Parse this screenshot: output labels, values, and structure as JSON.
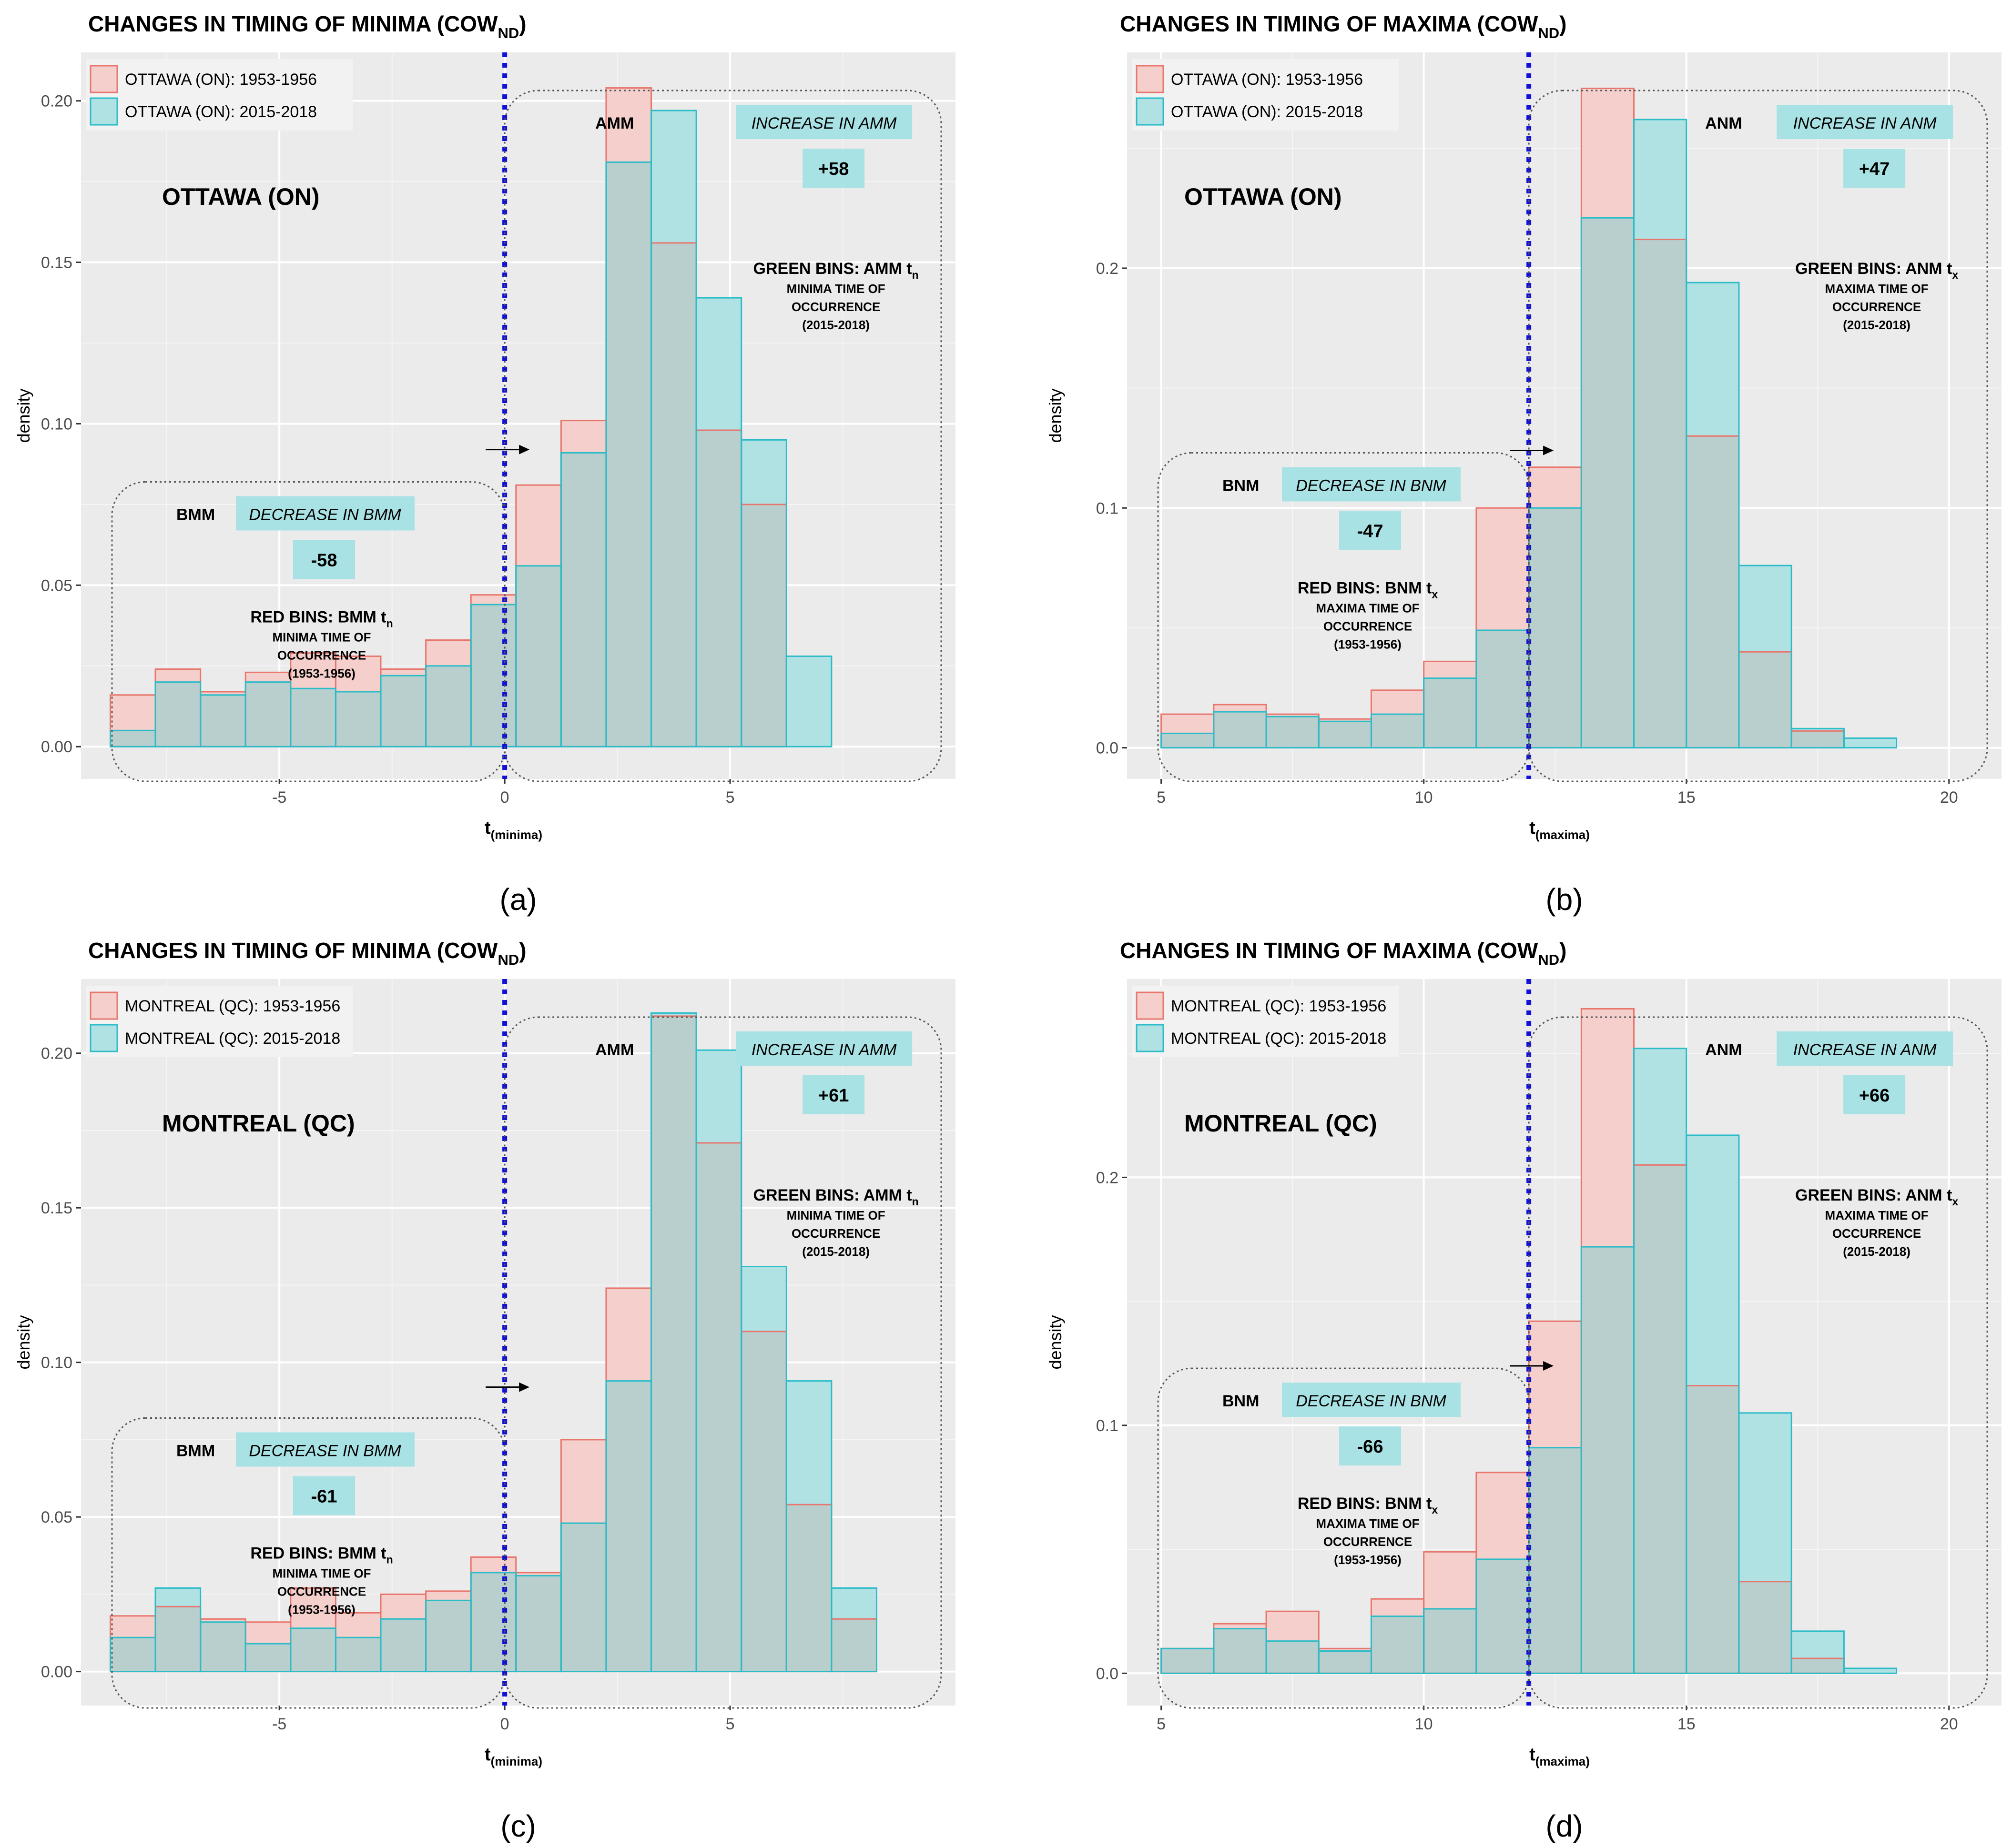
{
  "figure": {
    "panel_letters": [
      "(a)",
      "(b)",
      "(c)",
      "(d)"
    ]
  },
  "colors": {
    "panel_bg": "#ebebeb",
    "grid": "#ffffff",
    "red_fill": "#f4cfcc",
    "red_stroke": "#e8766d",
    "teal_fill": "#b0e2e4",
    "teal_stroke": "#2bbcc8",
    "overlap_fill": "#b9cfce",
    "vline": "#1010d8",
    "callout_bg": "#a9e2e4",
    "text": "#000000",
    "tick_text": "#4d4d4d"
  },
  "chart_data": [
    {
      "type": "bar",
      "panel": "(a)",
      "title": "CHANGES IN TIMING OF MINIMA (COW",
      "title_sub": "ND",
      "title_close": ")",
      "xlabel": "t",
      "xlabel_sub": "(minima)",
      "ylabel": "density",
      "xlim": [
        -9.4,
        10.0
      ],
      "ylim": [
        -0.01,
        0.215
      ],
      "xticks": [
        -5,
        0,
        5
      ],
      "xtick_labels": [
        "-5",
        "0",
        "5"
      ],
      "yticks": [
        0.0,
        0.05,
        0.1,
        0.15,
        0.2
      ],
      "ytick_labels": [
        "0.00",
        "0.05",
        "0.10",
        "0.15",
        "0.20"
      ],
      "bin_start": -8.75,
      "bin_width": 1.0,
      "series": [
        {
          "name": "OTTAWA (ON): 1953-1956",
          "color": "red",
          "values": [
            0.016,
            0.024,
            0.017,
            0.023,
            0.029,
            0.028,
            0.024,
            0.033,
            0.047,
            0.081,
            0.101,
            0.204,
            0.156,
            0.098,
            0.075,
            0.0
          ]
        },
        {
          "name": "OTTAWA (ON): 2015-2018",
          "color": "teal",
          "values": [
            0.005,
            0.02,
            0.016,
            0.02,
            0.018,
            0.017,
            0.022,
            0.025,
            0.044,
            0.056,
            0.091,
            0.181,
            0.197,
            0.139,
            0.095,
            0.028
          ]
        }
      ],
      "vline_x": 0,
      "station_label": "OTTAWA (ON)",
      "below_group": {
        "tag": "BMM",
        "callout": "DECREASE IN BMM",
        "change": "-58",
        "bins_title": "RED BINS: BMM t",
        "bins_sub": "n",
        "bins_desc": [
          "MINIMA TIME OF",
          "OCCURRENCE",
          "(1953-1956)"
        ]
      },
      "above_group": {
        "tag": "AMM",
        "callout": "INCREASE IN AMM",
        "change": "+58",
        "bins_title": "GREEN BINS: AMM t",
        "bins_sub": "n",
        "bins_desc": [
          "MINIMA TIME OF",
          "OCCURRENCE",
          "(2015-2018)"
        ]
      }
    },
    {
      "type": "bar",
      "panel": "(b)",
      "title": "CHANGES IN TIMING OF MAXIMA (COW",
      "title_sub": "ND",
      "title_close": ")",
      "xlabel": "t",
      "xlabel_sub": "(maxima)",
      "ylabel": "density",
      "xlim": [
        4.35,
        21.0
      ],
      "ylim": [
        -0.013,
        0.29
      ],
      "xticks": [
        5,
        10,
        15,
        20
      ],
      "xtick_labels": [
        "5",
        "10",
        "15",
        "20"
      ],
      "yticks": [
        0.0,
        0.1,
        0.2
      ],
      "ytick_labels": [
        "0.0",
        "0.1",
        "0.2"
      ],
      "bin_start": 5.0,
      "bin_width": 1.0,
      "series": [
        {
          "name": "OTTAWA (ON): 1953-1956",
          "color": "red",
          "values": [
            0.014,
            0.018,
            0.014,
            0.012,
            0.024,
            0.036,
            0.1,
            0.117,
            0.275,
            0.212,
            0.13,
            0.04,
            0.007,
            0.0,
            0.0
          ]
        },
        {
          "name": "OTTAWA (ON): 2015-2018",
          "color": "teal",
          "values": [
            0.006,
            0.015,
            0.013,
            0.011,
            0.014,
            0.029,
            0.049,
            0.1,
            0.221,
            0.262,
            0.194,
            0.076,
            0.008,
            0.004,
            0.0
          ]
        }
      ],
      "vline_x": 12,
      "station_label": "OTTAWA (ON)",
      "below_group": {
        "tag": "BNM",
        "callout": "DECREASE IN BNM",
        "change": "-47",
        "bins_title": "RED BINS: BNM t",
        "bins_sub": "x",
        "bins_desc": [
          "MAXIMA TIME OF",
          "OCCURRENCE",
          "(1953-1956)"
        ]
      },
      "above_group": {
        "tag": "ANM",
        "callout": "INCREASE IN ANM",
        "change": "+47",
        "bins_title": "GREEN BINS: ANM t",
        "bins_sub": "x",
        "bins_desc": [
          "MAXIMA TIME OF",
          "OCCURRENCE",
          "(2015-2018)"
        ]
      }
    },
    {
      "type": "bar",
      "panel": "(c)",
      "title": "CHANGES IN TIMING OF MINIMA (COW",
      "title_sub": "ND",
      "title_close": ")",
      "xlabel": "t",
      "xlabel_sub": "(minima)",
      "ylabel": "density",
      "xlim": [
        -9.4,
        10.0
      ],
      "ylim": [
        -0.011,
        0.224
      ],
      "xticks": [
        -5,
        0,
        5
      ],
      "xtick_labels": [
        "-5",
        "0",
        "5"
      ],
      "yticks": [
        0.0,
        0.05,
        0.1,
        0.15,
        0.2
      ],
      "ytick_labels": [
        "0.00",
        "0.05",
        "0.10",
        "0.15",
        "0.20"
      ],
      "bin_start": -8.75,
      "bin_width": 1.0,
      "series": [
        {
          "name": "MONTREAL (QC): 1953-1956",
          "color": "red",
          "values": [
            0.018,
            0.021,
            0.017,
            0.016,
            0.027,
            0.019,
            0.025,
            0.026,
            0.037,
            0.032,
            0.075,
            0.124,
            0.212,
            0.171,
            0.11,
            0.054,
            0.017
          ]
        },
        {
          "name": "MONTREAL (QC): 2015-2018",
          "color": "teal",
          "values": [
            0.011,
            0.027,
            0.016,
            0.009,
            0.014,
            0.011,
            0.017,
            0.023,
            0.032,
            0.031,
            0.048,
            0.094,
            0.213,
            0.201,
            0.131,
            0.094,
            0.027
          ]
        }
      ],
      "vline_x": 0,
      "station_label": "MONTREAL (QC)",
      "below_group": {
        "tag": "BMM",
        "callout": "DECREASE IN BMM",
        "change": "-61",
        "bins_title": "RED BINS: BMM t",
        "bins_sub": "n",
        "bins_desc": [
          "MINIMA TIME OF",
          "OCCURRENCE",
          "(1953-1956)"
        ]
      },
      "above_group": {
        "tag": "AMM",
        "callout": "INCREASE IN AMM",
        "change": "+61",
        "bins_title": "GREEN BINS: AMM t",
        "bins_sub": "n",
        "bins_desc": [
          "MINIMA TIME OF",
          "OCCURRENCE",
          "(2015-2018)"
        ]
      }
    },
    {
      "type": "bar",
      "panel": "(d)",
      "title": "CHANGES IN TIMING OF MAXIMA (COW",
      "title_sub": "ND",
      "title_close": ")",
      "xlabel": "t",
      "xlabel_sub": "(maxima)",
      "ylabel": "density",
      "xlim": [
        4.35,
        21.0
      ],
      "ylim": [
        -0.013,
        0.28
      ],
      "xticks": [
        5,
        10,
        15,
        20
      ],
      "xtick_labels": [
        "5",
        "10",
        "15",
        "20"
      ],
      "yticks": [
        0.0,
        0.1,
        0.2
      ],
      "ytick_labels": [
        "0.0",
        "0.1",
        "0.2"
      ],
      "bin_start": 5.0,
      "bin_width": 1.0,
      "series": [
        {
          "name": "MONTREAL (QC): 1953-1956",
          "color": "red",
          "values": [
            0.01,
            0.02,
            0.025,
            0.01,
            0.03,
            0.049,
            0.081,
            0.142,
            0.268,
            0.205,
            0.116,
            0.037,
            0.006,
            0.0,
            0.0
          ]
        },
        {
          "name": "MONTREAL (QC): 2015-2018",
          "color": "teal",
          "values": [
            0.01,
            0.018,
            0.013,
            0.009,
            0.023,
            0.026,
            0.046,
            0.091,
            0.172,
            0.252,
            0.217,
            0.105,
            0.017,
            0.002,
            0.0
          ]
        }
      ],
      "vline_x": 12,
      "station_label": "MONTREAL (QC)",
      "below_group": {
        "tag": "BNM",
        "callout": "DECREASE IN BNM",
        "change": "-66",
        "bins_title": "RED BINS: BNM t",
        "bins_sub": "x",
        "bins_desc": [
          "MAXIMA TIME OF",
          "OCCURRENCE",
          "(1953-1956)"
        ]
      },
      "above_group": {
        "tag": "ANM",
        "callout": "INCREASE IN ANM",
        "change": "+66",
        "bins_title": "GREEN BINS: ANM t",
        "bins_sub": "x",
        "bins_desc": [
          "MAXIMA TIME OF",
          "OCCURRENCE",
          "(2015-2018)"
        ]
      }
    }
  ]
}
